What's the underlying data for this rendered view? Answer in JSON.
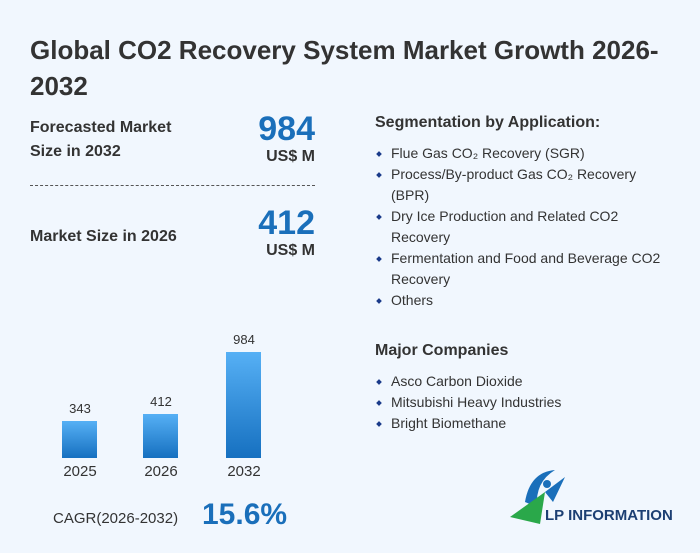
{
  "title": "Global CO2 Recovery System Market Growth 2026-2032",
  "forecast": {
    "label": "Forecasted Market Size in 2032",
    "value": "984",
    "unit": "US$ M"
  },
  "current": {
    "label": "Market Size in 2026",
    "value": "412",
    "unit": "US$ M"
  },
  "segmentation": {
    "heading": "Segmentation by Application:",
    "items": [
      "Flue Gas CO₂ Recovery (SGR)",
      "Process/By-product Gas CO₂ Recovery (BPR)",
      "Dry Ice Production and Related CO2 Recovery",
      "Fermentation and Food and Beverage CO2 Recovery",
      "Others"
    ]
  },
  "companies": {
    "heading": "Major Companies",
    "items": [
      "Asco Carbon Dioxide",
      "Mitsubishi Heavy Industries",
      "Bright Biomethane"
    ]
  },
  "cagr": {
    "label": "CAGR(2026-2032)",
    "value": "15.6%"
  },
  "logo": {
    "text": "LP INFORMATION"
  },
  "chart_data": {
    "type": "bar",
    "categories": [
      "2025",
      "2026",
      "2032"
    ],
    "values": [
      343,
      412,
      984
    ],
    "labels": [
      "343",
      "412",
      "984"
    ],
    "ylim": [
      0,
      984
    ],
    "color": "#1a7fd0"
  }
}
